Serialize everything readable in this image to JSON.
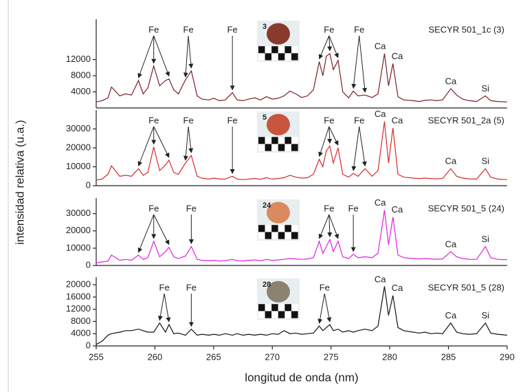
{
  "chart_data": [
    {
      "type": "line",
      "y_label": "intensidad relativa (u.a.)",
      "photo_label": "3",
      "xlim": [
        255,
        290
      ],
      "ylim": [
        0,
        22000
      ],
      "yticks": [
        4000,
        8000,
        12000
      ],
      "x": [
        255,
        255.5,
        256,
        256.3,
        257,
        257.5,
        258,
        258.6,
        259,
        259.4,
        259.9,
        260.4,
        260.9,
        261.2,
        261.6,
        262,
        262.6,
        263.1,
        263.6,
        264,
        264.6,
        265,
        265.5,
        266,
        266.6,
        267,
        267.5,
        268,
        268.5,
        269,
        269.5,
        270,
        270.5,
        271,
        271.5,
        272,
        272.5,
        273,
        273.5,
        274,
        274.3,
        274.6,
        274.9,
        275.2,
        275.6,
        276,
        276.5,
        276.9,
        277.3,
        277.9,
        278.5,
        279,
        279.55,
        279.9,
        280.27,
        280.7,
        281.2,
        282,
        282.5,
        283,
        283.5,
        284,
        284.5,
        285.2,
        285.7,
        286.2,
        286.8,
        287.4,
        288.15,
        288.6,
        289.2,
        290
      ],
      "series": [
        {
          "name": "SECYR 501_1c (3)",
          "color": "#7b1e22",
          "values": [
            1500,
            1800,
            2500,
            5200,
            3000,
            3500,
            3200,
            6800,
            3500,
            5000,
            10400,
            5500,
            6800,
            7200,
            4500,
            3500,
            7000,
            9200,
            3000,
            2200,
            2000,
            2400,
            1800,
            2000,
            3800,
            2000,
            1800,
            2200,
            2500,
            2000,
            2800,
            2200,
            2400,
            3000,
            4200,
            3500,
            2600,
            3000,
            4500,
            11500,
            8000,
            12800,
            13500,
            9500,
            11800,
            4000,
            2500,
            4200,
            3000,
            3200,
            2600,
            3500,
            13500,
            5500,
            11000,
            2800,
            2000,
            1800,
            1600,
            1900,
            2000,
            1800,
            2000,
            4800,
            3200,
            2200,
            1800,
            1600,
            3000,
            1800,
            1600,
            1500
          ]
        }
      ],
      "annotations": [
        {
          "text": "Fe",
          "peaks": [
            258.6,
            259.9,
            261.2
          ],
          "arrow": true
        },
        {
          "text": "Fe",
          "peaks": [
            262.6,
            263.1
          ],
          "arrow": true
        },
        {
          "text": "Fe",
          "peaks": [
            266.6
          ],
          "arrow": true
        },
        {
          "text": "Fe",
          "peaks": [
            274,
            274.9,
            275.6
          ],
          "arrow": true
        },
        {
          "text": "Fe",
          "peaks": [
            276.9,
            277.9
          ],
          "arrow": true
        },
        {
          "text": "Ca",
          "peaks": [
            279.55
          ],
          "arrow": false
        },
        {
          "text": "Ca",
          "peaks": [
            280.27
          ],
          "arrow": false
        },
        {
          "text": "Ca",
          "peaks": [
            285.2
          ],
          "arrow": false
        },
        {
          "text": "Si",
          "peaks": [
            288.15
          ],
          "arrow": false
        }
      ]
    },
    {
      "type": "line",
      "photo_label": "5",
      "xlim": [
        255,
        290
      ],
      "ylim": [
        0,
        40000
      ],
      "yticks": [
        0,
        10000,
        20000,
        30000
      ],
      "x": [
        255,
        255.5,
        256,
        256.3,
        257,
        257.5,
        258,
        258.6,
        259,
        259.4,
        259.9,
        260.4,
        260.9,
        261.2,
        261.6,
        262,
        262.6,
        263.1,
        263.6,
        264,
        264.6,
        265,
        265.5,
        266,
        266.6,
        267,
        267.5,
        268,
        268.5,
        269,
        269.5,
        270,
        270.5,
        271,
        271.5,
        272,
        272.5,
        273,
        273.5,
        274,
        274.3,
        274.6,
        274.9,
        275.2,
        275.6,
        276,
        276.5,
        276.9,
        277.3,
        277.9,
        278.5,
        279,
        279.55,
        279.9,
        280.27,
        280.7,
        281.2,
        282,
        282.5,
        283,
        283.5,
        284,
        284.5,
        285.2,
        285.7,
        286.2,
        286.8,
        287.4,
        288.15,
        288.6,
        289.2,
        290
      ],
      "series": [
        {
          "name": "SECYR 501_2a (5)",
          "color": "#d42a2a",
          "values": [
            3000,
            3500,
            6000,
            10500,
            5000,
            5500,
            5000,
            9000,
            5500,
            7000,
            20500,
            8000,
            11000,
            13500,
            7000,
            6000,
            12000,
            16000,
            5000,
            4000,
            3500,
            4000,
            3500,
            3500,
            5000,
            3500,
            3200,
            3500,
            3800,
            3400,
            4200,
            3500,
            3800,
            4200,
            5500,
            4500,
            4000,
            4200,
            6000,
            14000,
            10000,
            18500,
            21000,
            12000,
            20000,
            6000,
            4500,
            6500,
            5000,
            9000,
            5000,
            8000,
            34000,
            12000,
            30500,
            6000,
            4500,
            4000,
            3800,
            4000,
            3800,
            3600,
            3800,
            9000,
            5000,
            4000,
            3600,
            3500,
            9000,
            4500,
            3500,
            3200
          ]
        }
      ],
      "annotations": [
        {
          "text": "Fe",
          "peaks": [
            258.6,
            259.9,
            261.2
          ],
          "arrow": true
        },
        {
          "text": "Fe",
          "peaks": [
            262.6,
            263.1
          ],
          "arrow": true
        },
        {
          "text": "Fe",
          "peaks": [
            266.6
          ],
          "arrow": true
        },
        {
          "text": "Fe",
          "peaks": [
            274,
            274.9,
            275.6
          ],
          "arrow": true
        },
        {
          "text": "Fe",
          "peaks": [
            276.9,
            277.9
          ],
          "arrow": true
        },
        {
          "text": "Ca",
          "peaks": [
            279.55
          ],
          "arrow": false
        },
        {
          "text": "Ca",
          "peaks": [
            280.27
          ],
          "arrow": false
        },
        {
          "text": "Ca",
          "peaks": [
            285.2
          ],
          "arrow": false
        },
        {
          "text": "Si",
          "peaks": [
            288.15
          ],
          "arrow": false
        }
      ]
    },
    {
      "type": "line",
      "photo_label": "24",
      "xlim": [
        255,
        290
      ],
      "ylim": [
        0,
        39000
      ],
      "yticks": [
        0,
        10000,
        20000,
        30000
      ],
      "x": [
        255,
        255.5,
        256,
        256.3,
        257,
        257.5,
        258,
        258.6,
        259,
        259.4,
        259.9,
        260.4,
        260.9,
        261.2,
        261.6,
        262,
        262.6,
        263.1,
        263.6,
        264,
        264.6,
        265,
        265.5,
        266,
        266.6,
        267,
        267.5,
        268,
        268.5,
        269,
        269.5,
        270,
        270.5,
        271,
        271.5,
        272,
        272.5,
        273,
        273.5,
        274,
        274.3,
        274.6,
        274.9,
        275.2,
        275.6,
        276,
        276.5,
        276.9,
        277.3,
        277.9,
        278.5,
        279,
        279.55,
        279.9,
        280.27,
        280.7,
        281.2,
        282,
        282.5,
        283,
        283.5,
        284,
        284.5,
        285.2,
        285.7,
        286.2,
        286.8,
        287.4,
        288.15,
        288.6,
        289.2,
        290
      ],
      "series": [
        {
          "name": "SECYR 501_5 (24)",
          "color": "#e020e0",
          "values": [
            1500,
            2000,
            2500,
            6000,
            3000,
            3500,
            3000,
            6000,
            3500,
            4500,
            14000,
            5000,
            8000,
            10500,
            5000,
            4000,
            5500,
            11000,
            3500,
            3000,
            2800,
            3000,
            2500,
            2800,
            3500,
            2800,
            2600,
            3000,
            3200,
            2800,
            3500,
            3000,
            3200,
            3500,
            4000,
            3800,
            3500,
            3800,
            4500,
            14000,
            7000,
            11000,
            15000,
            8000,
            14000,
            5000,
            4000,
            6500,
            4500,
            5000,
            4500,
            7000,
            32000,
            12000,
            28000,
            6000,
            4500,
            4000,
            3800,
            4000,
            3800,
            3600,
            3800,
            8000,
            5000,
            4000,
            3600,
            3500,
            11000,
            4500,
            3500,
            3300
          ]
        }
      ],
      "annotations": [
        {
          "text": "Fe",
          "peaks": [
            258.6,
            259.9,
            261.2
          ],
          "arrow": true
        },
        {
          "text": "Fe",
          "peaks": [
            263.1
          ],
          "arrow": true
        },
        {
          "text": "Fe",
          "peaks": [
            274,
            274.9,
            275.6
          ],
          "arrow": true
        },
        {
          "text": "Fe",
          "peaks": [
            276.9
          ],
          "arrow": true
        },
        {
          "text": "Ca",
          "peaks": [
            279.55
          ],
          "arrow": false
        },
        {
          "text": "Ca",
          "peaks": [
            280.27
          ],
          "arrow": false
        },
        {
          "text": "Ca",
          "peaks": [
            285.2
          ],
          "arrow": false
        },
        {
          "text": "Si",
          "peaks": [
            288.15
          ],
          "arrow": false
        }
      ]
    },
    {
      "type": "line",
      "photo_label": "28",
      "x_label": "longitud de onda (nm)",
      "xlim": [
        255,
        290
      ],
      "xticks": [
        255,
        260,
        265,
        270,
        275,
        280,
        285,
        290
      ],
      "ylim": [
        0,
        22500
      ],
      "yticks": [
        0,
        4000,
        8000,
        12000,
        16000,
        20000
      ],
      "x": [
        255,
        255.5,
        256,
        256.3,
        257,
        257.5,
        258,
        258.6,
        259,
        259.4,
        259.9,
        260.4,
        260.9,
        261.2,
        261.6,
        262,
        262.6,
        263.1,
        263.6,
        264,
        264.6,
        265,
        265.5,
        266,
        266.6,
        267,
        267.5,
        268,
        268.5,
        269,
        269.5,
        270,
        270.5,
        271,
        271.5,
        272,
        272.5,
        273,
        273.5,
        274,
        274.3,
        274.6,
        274.9,
        275.2,
        275.6,
        276,
        276.5,
        276.9,
        277.3,
        277.9,
        278.5,
        279,
        279.55,
        279.9,
        280.27,
        280.7,
        281.2,
        282,
        282.5,
        283,
        283.5,
        284,
        284.5,
        285.2,
        285.7,
        286.2,
        286.8,
        287.4,
        288.15,
        288.6,
        289.2,
        290
      ],
      "series": [
        {
          "name": "SECYR 501_5 (28)",
          "color": "#111111",
          "values": [
            500,
            1500,
            3500,
            4000,
            4500,
            5000,
            5000,
            5500,
            5000,
            4500,
            4500,
            7500,
            4500,
            7000,
            4000,
            4200,
            3500,
            5500,
            3500,
            3800,
            3500,
            3800,
            3500,
            4000,
            3500,
            4000,
            3500,
            3800,
            3500,
            3800,
            3500,
            4000,
            3800,
            5000,
            4000,
            4200,
            3800,
            4000,
            4200,
            6500,
            5000,
            6000,
            7000,
            5000,
            5500,
            4500,
            5000,
            4500,
            5000,
            5500,
            5000,
            6500,
            19500,
            10000,
            16500,
            6000,
            5000,
            4500,
            4200,
            4500,
            4000,
            4200,
            4000,
            7500,
            4500,
            4000,
            3800,
            4000,
            7500,
            4200,
            3800,
            3500
          ]
        }
      ],
      "annotations": [
        {
          "text": "Fe",
          "peaks": [
            260.4,
            261.2
          ],
          "arrow": true
        },
        {
          "text": "Fe",
          "peaks": [
            263.1
          ],
          "arrow": true
        },
        {
          "text": "Fe",
          "peaks": [
            274,
            274.9
          ],
          "arrow": true
        },
        {
          "text": "Ca",
          "peaks": [
            279.55
          ],
          "arrow": false
        },
        {
          "text": "Ca",
          "peaks": [
            280.27
          ],
          "arrow": false
        },
        {
          "text": "Ca",
          "peaks": [
            285.2
          ],
          "arrow": false
        },
        {
          "text": "Si",
          "peaks": [
            288.15
          ],
          "arrow": false
        }
      ]
    }
  ]
}
